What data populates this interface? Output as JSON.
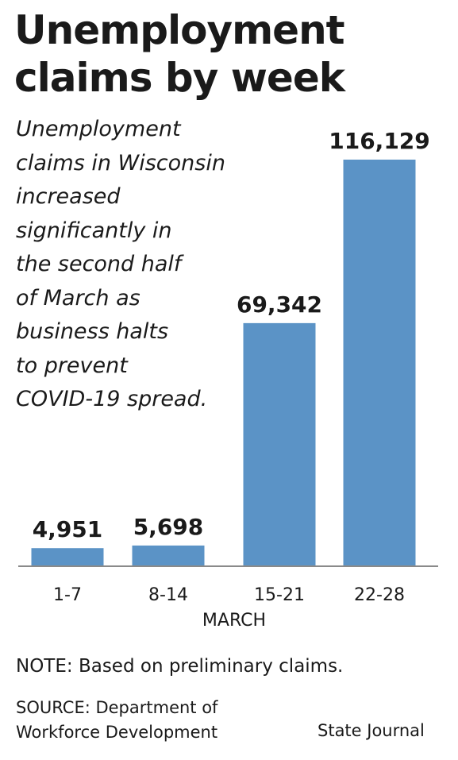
{
  "title_lines": [
    "Unemployment",
    "claims by week"
  ],
  "description_lines": [
    "Unemployment",
    "claims in Wisconsin",
    "increased",
    "significantly in",
    "the second half",
    "of March as",
    "business halts",
    "to prevent",
    "COVID-19 spread."
  ],
  "chart_data": {
    "type": "bar",
    "categories": [
      "1-7",
      "8-14",
      "15-21",
      "22-28"
    ],
    "values": [
      4951,
      5698,
      69342,
      116129
    ],
    "value_labels": [
      "4,951",
      "5,698",
      "69,342",
      "116,129"
    ],
    "xlabel": "MARCH",
    "ylabel": "",
    "ylim": [
      0,
      116129
    ],
    "grid": false,
    "bar_color": "#5b93c6",
    "baseline_color": "#8a8a8a"
  },
  "note": "NOTE: Based on preliminary claims.",
  "source_lines": [
    "SOURCE: Department of",
    "Workforce Development"
  ],
  "credit": "State Journal"
}
